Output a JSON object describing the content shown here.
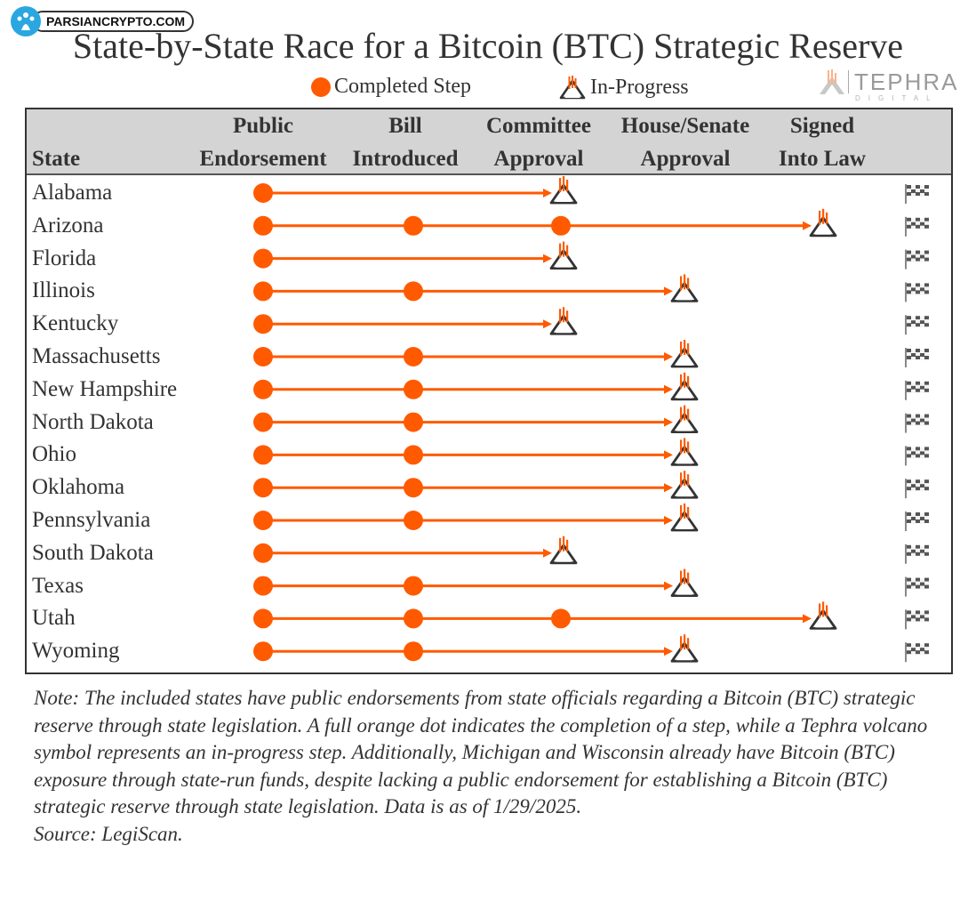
{
  "watermark": {
    "text": "PARSIANCRYPTO.COM"
  },
  "brand": {
    "name": "TEPHRA",
    "sub": "DIGITAL"
  },
  "legend": {
    "completed": "Completed Step",
    "in_progress": "In-Progress"
  },
  "colors": {
    "accent": "#ff5a00",
    "header_bg": "#d4d4d4",
    "text": "#333333"
  },
  "chart_data": {
    "type": "table",
    "title": "State-by-State Race for a Bitcoin (BTC) Strategic Reserve",
    "state_header": "State",
    "steps": [
      {
        "line1": "Public",
        "line2": "Endorsement"
      },
      {
        "line1": "Bill",
        "line2": "Introduced"
      },
      {
        "line1": "Committee",
        "line2": "Approval"
      },
      {
        "line1": "House/Senate",
        "line2": "Approval"
      },
      {
        "line1": "Signed",
        "line2": "Into Law"
      }
    ],
    "rows": [
      {
        "state": "Alabama",
        "completed": 1,
        "in_progress": 2
      },
      {
        "state": "Arizona",
        "completed": 3,
        "in_progress": 4
      },
      {
        "state": "Florida",
        "completed": 1,
        "in_progress": 2
      },
      {
        "state": "Illinois",
        "completed": 2,
        "in_progress": 3
      },
      {
        "state": "Kentucky",
        "completed": 1,
        "in_progress": 2
      },
      {
        "state": "Massachusetts",
        "completed": 2,
        "in_progress": 3
      },
      {
        "state": "New Hampshire",
        "completed": 2,
        "in_progress": 3
      },
      {
        "state": "North Dakota",
        "completed": 2,
        "in_progress": 3
      },
      {
        "state": "Ohio",
        "completed": 2,
        "in_progress": 3
      },
      {
        "state": "Oklahoma",
        "completed": 2,
        "in_progress": 3
      },
      {
        "state": "Pennsylvania",
        "completed": 2,
        "in_progress": 3
      },
      {
        "state": "South Dakota",
        "completed": 1,
        "in_progress": 2
      },
      {
        "state": "Texas",
        "completed": 2,
        "in_progress": 3
      },
      {
        "state": "Utah",
        "completed": 3,
        "in_progress": 4
      },
      {
        "state": "Wyoming",
        "completed": 2,
        "in_progress": 3
      }
    ]
  },
  "note": {
    "text": "Note: The included states have public endorsements from state officials regarding a Bitcoin (BTC) strategic reserve through state legislation. A full orange dot indicates the completion of a step, while a Tephra volcano symbol represents an in-progress step. Additionally, Michigan and Wisconsin already have Bitcoin (BTC) exposure through state-run funds, despite lacking a public endorsement for establishing a Bitcoin (BTC) strategic reserve through state legislation. Data is as of 1/29/2025.",
    "source": "Source: LegiScan."
  }
}
